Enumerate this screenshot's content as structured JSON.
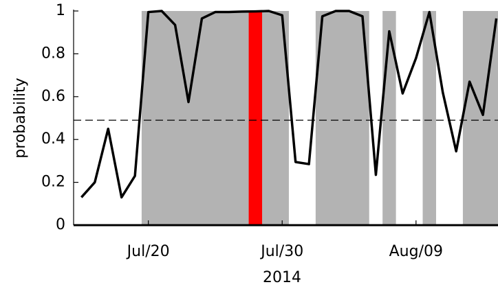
{
  "chart_data": {
    "type": "line",
    "ylabel": "probability",
    "xlabel": "2014",
    "x": [
      "2014-07-15",
      "2014-07-16",
      "2014-07-17",
      "2014-07-18",
      "2014-07-19",
      "2014-07-20",
      "2014-07-21",
      "2014-07-22",
      "2014-07-23",
      "2014-07-24",
      "2014-07-25",
      "2014-07-26",
      "2014-07-27",
      "2014-07-28",
      "2014-07-29",
      "2014-07-30",
      "2014-07-31",
      "2014-08-01",
      "2014-08-02",
      "2014-08-03",
      "2014-08-04",
      "2014-08-05",
      "2014-08-06",
      "2014-08-07",
      "2014-08-08",
      "2014-08-09",
      "2014-08-10",
      "2014-08-11",
      "2014-08-12",
      "2014-08-13",
      "2014-08-14",
      "2014-08-15"
    ],
    "series": [
      {
        "color": "#000000",
        "values": [
          0.13,
          0.2,
          0.45,
          0.13,
          0.23,
          0.995,
          1.0,
          0.935,
          0.575,
          0.965,
          0.995,
          0.995,
          0.997,
          0.998,
          1.0,
          0.98,
          0.295,
          0.285,
          0.975,
          1.0,
          1.0,
          0.975,
          0.235,
          0.905,
          0.615,
          0.78,
          0.995,
          0.62,
          0.345,
          0.67,
          0.515,
          0.965
        ]
      }
    ],
    "ylim": [
      0,
      1
    ],
    "yticks": [
      0,
      0.2,
      0.4,
      0.6,
      0.8,
      1
    ],
    "xlim": [
      "2014-07-14T10:00Z",
      "2014-08-15T03:00Z"
    ],
    "xticks": [
      {
        "value": "2014-07-20",
        "label": "Jul/20"
      },
      {
        "value": "2014-07-30",
        "label": "Jul/30"
      },
      {
        "value": "2014-08-09",
        "label": "Aug/09"
      }
    ],
    "threshold": 0.49,
    "region_color": "#b3b3b3",
    "shaded_regions": [
      {
        "start": "2014-07-19T12:00Z",
        "end": "2014-07-30T12:00Z"
      },
      {
        "start": "2014-08-01T12:00Z",
        "end": "2014-08-05T12:00Z"
      },
      {
        "start": "2014-08-06T12:00Z",
        "end": "2014-08-07T12:00Z"
      },
      {
        "start": "2014-08-09T12:00Z",
        "end": "2014-08-10T12:00Z"
      },
      {
        "start": "2014-08-12T12:00Z",
        "end": "2014-08-15T03:00Z"
      }
    ],
    "highlight": {
      "start": "2014-07-27T12:00Z",
      "end": "2014-07-28T12:00Z",
      "color": "#ff0000"
    }
  }
}
